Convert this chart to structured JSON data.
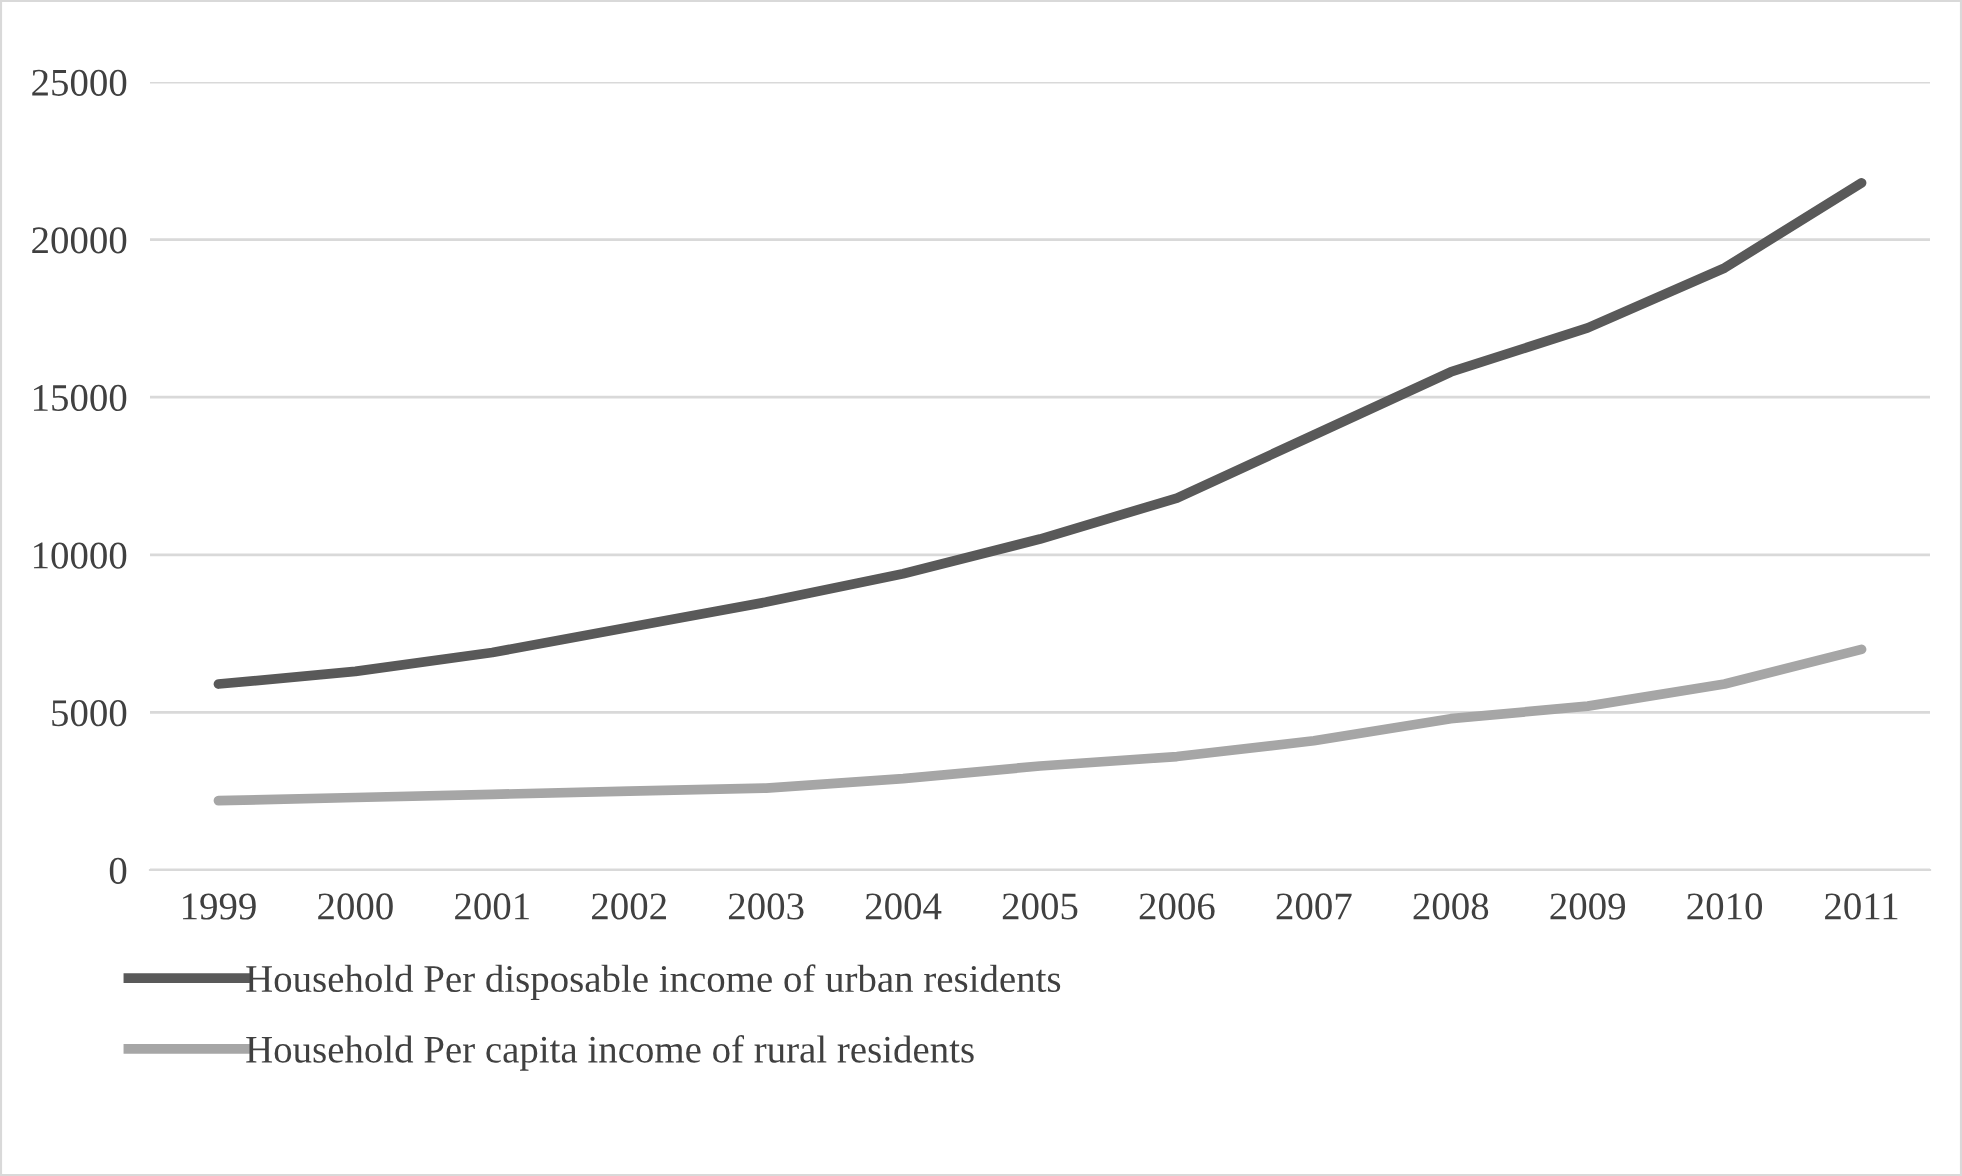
{
  "chart_data": {
    "type": "line",
    "categories": [
      "1999",
      "2000",
      "2001",
      "2002",
      "2003",
      "2004",
      "2005",
      "2006",
      "2007",
      "2008",
      "2009",
      "2010",
      "2011"
    ],
    "series": [
      {
        "name": "Household Per disposable income of urban residents",
        "color": "#595959",
        "values": [
          5900,
          6300,
          6900,
          7700,
          8500,
          9400,
          10500,
          11800,
          13800,
          15800,
          17200,
          19100,
          21800
        ]
      },
      {
        "name": "Household Per capita income of rural residents",
        "color": "#a6a6a6",
        "values": [
          2200,
          2300,
          2400,
          2500,
          2600,
          2900,
          3300,
          3600,
          4100,
          4800,
          5200,
          5900,
          7000
        ]
      }
    ],
    "ylim": [
      0,
      25000
    ],
    "yticks": [
      0,
      5000,
      10000,
      15000,
      20000,
      25000
    ],
    "grid": "y",
    "legend": "bottom",
    "marker": "none",
    "line_style": "solid"
  }
}
